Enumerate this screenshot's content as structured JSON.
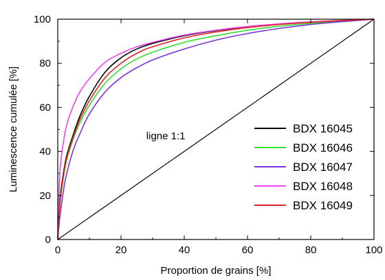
{
  "chart_data": {
    "type": "line",
    "xlabel": "Proportion de grains [%]",
    "ylabel": "Luminescence cumulée [%]",
    "xlim": [
      0,
      100
    ],
    "ylim": [
      0,
      100
    ],
    "xticks": [
      0,
      20,
      40,
      60,
      80,
      100
    ],
    "yticks": [
      0,
      20,
      40,
      60,
      80,
      100
    ],
    "legend_position": "bottom-right",
    "annotations": [
      {
        "text": "ligne 1:1",
        "x": 28,
        "y": 47
      }
    ],
    "reference_line": {
      "x": [
        0,
        100
      ],
      "y": [
        0,
        100
      ],
      "color": "#000000"
    },
    "series": [
      {
        "name": "BDX 16045",
        "color": "#000000",
        "x": [
          0,
          0.5,
          1,
          2,
          3,
          5,
          7,
          10,
          15,
          20,
          25,
          30,
          40,
          50,
          60,
          70,
          80,
          90,
          100
        ],
        "y": [
          0,
          14,
          22,
          32,
          39,
          48,
          56,
          65,
          76,
          82.5,
          86.5,
          89,
          92.5,
          94.8,
          96.5,
          97.8,
          98.7,
          99.4,
          100
        ]
      },
      {
        "name": "BDX 16046",
        "color": "#33dd33",
        "x": [
          0,
          0.5,
          1,
          2,
          3,
          5,
          7,
          10,
          15,
          20,
          25,
          30,
          40,
          50,
          60,
          70,
          80,
          90,
          100
        ],
        "y": [
          0,
          12,
          20,
          30,
          37,
          46,
          53,
          61,
          71,
          77.5,
          82,
          85,
          89.5,
          92.5,
          95,
          96.8,
          98.1,
          99.1,
          100
        ]
      },
      {
        "name": "BDX 16047",
        "color": "#7733dd",
        "x": [
          0,
          0.5,
          1,
          2,
          3,
          5,
          7,
          10,
          15,
          20,
          25,
          30,
          40,
          50,
          60,
          70,
          80,
          90,
          100
        ],
        "y": [
          0,
          8,
          14,
          24,
          31,
          41,
          48,
          57,
          67,
          73.5,
          78,
          81.5,
          86.5,
          90.5,
          93.5,
          95.8,
          97.6,
          98.9,
          100
        ]
      },
      {
        "name": "BDX 16048",
        "color": "#ee44ee",
        "x": [
          0,
          0.5,
          1,
          2,
          3,
          5,
          7,
          10,
          15,
          20,
          25,
          30,
          40,
          50,
          60,
          70,
          80,
          90,
          100
        ],
        "y": [
          0,
          25,
          36,
          46,
          53,
          61,
          67,
          73,
          80.5,
          84.5,
          87.5,
          89.5,
          92.8,
          95,
          96.7,
          97.9,
          98.8,
          99.5,
          100
        ]
      },
      {
        "name": "BDX 16049",
        "color": "#dd2222",
        "x": [
          0,
          0.5,
          1,
          2,
          3,
          5,
          7,
          10,
          15,
          20,
          25,
          30,
          40,
          50,
          60,
          70,
          80,
          90,
          100
        ],
        "y": [
          0,
          13,
          21,
          31,
          38,
          47,
          54.5,
          63,
          73.5,
          80,
          84.5,
          87.5,
          91.5,
          94.2,
          96.2,
          97.6,
          98.6,
          99.4,
          100
        ]
      }
    ]
  }
}
